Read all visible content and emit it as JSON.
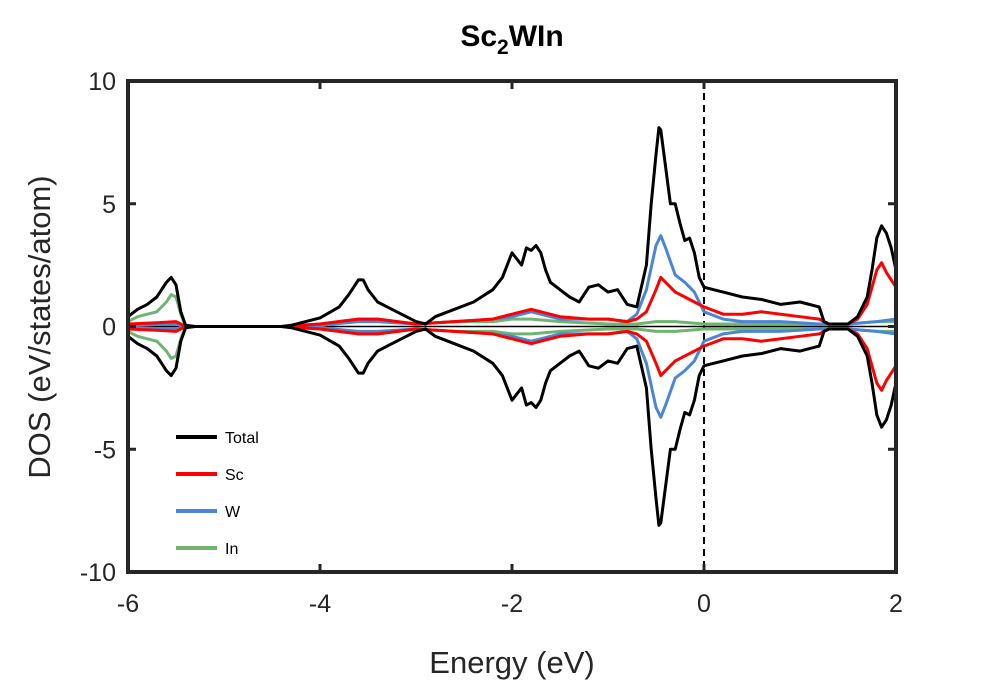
{
  "chart_data": {
    "type": "line",
    "title": "Sc2WIn",
    "title_main": "Sc",
    "title_sub": "2",
    "title_rest": "WIn",
    "xlabel": "Energy (eV)",
    "ylabel": "DOS (eV/states/atom)",
    "xlim": [
      -6,
      2
    ],
    "ylim": [
      -10,
      10
    ],
    "xticks": [
      -6,
      -4,
      -2,
      0,
      2
    ],
    "yticks": [
      -10,
      -5,
      0,
      5,
      10
    ],
    "xtick_labels": [
      "-6",
      "-4",
      "-2",
      "0",
      "2"
    ],
    "ytick_labels": [
      "-10",
      "-5",
      "0",
      "5",
      "10"
    ],
    "fermi_level": 0,
    "grid": false,
    "legend_position": "lower-left",
    "mirrored_spin": true,
    "series": [
      {
        "name": "Total",
        "color": "#000000",
        "x": [
          -6.0,
          -5.9,
          -5.8,
          -5.7,
          -5.6,
          -5.55,
          -5.5,
          -5.45,
          -5.4,
          -5.3,
          -5.0,
          -4.6,
          -4.4,
          -4.3,
          -4.2,
          -4.0,
          -3.8,
          -3.7,
          -3.6,
          -3.55,
          -3.5,
          -3.4,
          -3.3,
          -3.2,
          -3.0,
          -2.9,
          -2.8,
          -2.6,
          -2.4,
          -2.2,
          -2.1,
          -2.0,
          -1.9,
          -1.85,
          -1.8,
          -1.75,
          -1.7,
          -1.65,
          -1.6,
          -1.5,
          -1.4,
          -1.3,
          -1.2,
          -1.1,
          -1.0,
          -0.9,
          -0.8,
          -0.7,
          -0.6,
          -0.55,
          -0.5,
          -0.47,
          -0.45,
          -0.4,
          -0.35,
          -0.3,
          -0.25,
          -0.2,
          -0.15,
          -0.1,
          -0.05,
          0.0,
          0.1,
          0.2,
          0.4,
          0.6,
          0.8,
          1.0,
          1.2,
          1.25,
          1.3,
          1.5,
          1.6,
          1.7,
          1.75,
          1.8,
          1.85,
          1.9,
          1.95,
          2.0
        ],
        "values": [
          0.4,
          0.7,
          0.9,
          1.2,
          1.8,
          2.0,
          1.7,
          0.6,
          0.05,
          0.0,
          0.0,
          0.0,
          0.0,
          0.05,
          0.15,
          0.35,
          0.8,
          1.3,
          1.9,
          1.9,
          1.5,
          1.0,
          0.8,
          0.6,
          0.2,
          0.1,
          0.4,
          0.7,
          1.0,
          1.5,
          2.0,
          3.0,
          2.5,
          3.2,
          3.1,
          3.3,
          3.0,
          2.3,
          1.8,
          1.5,
          1.2,
          1.0,
          1.6,
          1.7,
          1.4,
          1.5,
          0.9,
          0.8,
          2.5,
          5.0,
          7.0,
          8.1,
          8.0,
          6.5,
          5.0,
          5.0,
          4.2,
          3.5,
          3.6,
          3.0,
          2.0,
          1.6,
          1.5,
          1.4,
          1.2,
          1.1,
          0.9,
          1.0,
          0.8,
          0.2,
          0.1,
          0.1,
          0.4,
          1.2,
          2.3,
          3.6,
          4.1,
          3.8,
          3.2,
          2.3
        ]
      },
      {
        "name": "Sc",
        "color": "#ff0000",
        "x": [
          -6.0,
          -5.7,
          -5.5,
          -5.4,
          -5.0,
          -4.4,
          -4.2,
          -4.0,
          -3.6,
          -3.4,
          -3.0,
          -2.6,
          -2.2,
          -2.0,
          -1.8,
          -1.7,
          -1.5,
          -1.2,
          -1.0,
          -0.8,
          -0.7,
          -0.6,
          -0.5,
          -0.45,
          -0.4,
          -0.3,
          -0.2,
          -0.1,
          0.0,
          0.2,
          0.4,
          0.6,
          0.8,
          1.0,
          1.2,
          1.3,
          1.5,
          1.6,
          1.7,
          1.8,
          1.85,
          1.9,
          2.0
        ],
        "values": [
          0.1,
          0.15,
          0.2,
          0.0,
          0.0,
          0.0,
          0.05,
          0.1,
          0.3,
          0.3,
          0.1,
          0.2,
          0.3,
          0.5,
          0.7,
          0.6,
          0.4,
          0.3,
          0.3,
          0.2,
          0.3,
          0.6,
          1.5,
          2.0,
          1.8,
          1.4,
          1.2,
          1.0,
          0.8,
          0.5,
          0.5,
          0.6,
          0.5,
          0.4,
          0.3,
          0.1,
          0.1,
          0.3,
          0.9,
          2.3,
          2.6,
          2.2,
          1.6
        ]
      },
      {
        "name": "W",
        "color": "#4a86d6",
        "x": [
          -6.0,
          -5.5,
          -5.4,
          -5.0,
          -4.4,
          -4.0,
          -3.6,
          -3.4,
          -3.0,
          -2.6,
          -2.2,
          -2.0,
          -1.8,
          -1.7,
          -1.5,
          -1.2,
          -1.0,
          -0.8,
          -0.7,
          -0.6,
          -0.5,
          -0.45,
          -0.4,
          -0.3,
          -0.2,
          -0.1,
          0.0,
          0.2,
          0.4,
          0.8,
          1.2,
          1.5,
          1.8,
          2.0
        ],
        "values": [
          0.05,
          0.1,
          0.0,
          0.0,
          0.0,
          0.05,
          0.2,
          0.2,
          0.1,
          0.2,
          0.3,
          0.4,
          0.6,
          0.5,
          0.3,
          0.3,
          0.3,
          0.2,
          0.5,
          1.5,
          3.3,
          3.7,
          3.2,
          2.1,
          1.8,
          1.4,
          0.6,
          0.3,
          0.2,
          0.2,
          0.1,
          0.1,
          0.2,
          0.3
        ]
      },
      {
        "name": "In",
        "color": "#6fb56f",
        "x": [
          -6.0,
          -5.9,
          -5.8,
          -5.7,
          -5.6,
          -5.55,
          -5.5,
          -5.45,
          -5.4,
          -5.0,
          -4.4,
          -4.0,
          -3.6,
          -3.4,
          -3.0,
          -2.6,
          -2.2,
          -2.0,
          -1.8,
          -1.5,
          -1.0,
          -0.7,
          -0.5,
          -0.3,
          0.0,
          0.4,
          0.8,
          1.2,
          1.5,
          1.8,
          2.0
        ],
        "values": [
          0.2,
          0.4,
          0.5,
          0.6,
          1.0,
          1.3,
          1.2,
          0.5,
          0.0,
          0.0,
          0.0,
          0.1,
          0.3,
          0.3,
          0.1,
          0.2,
          0.2,
          0.3,
          0.3,
          0.2,
          0.1,
          0.1,
          0.2,
          0.2,
          0.1,
          0.1,
          0.1,
          0.1,
          0.1,
          0.2,
          0.2
        ]
      }
    ]
  }
}
